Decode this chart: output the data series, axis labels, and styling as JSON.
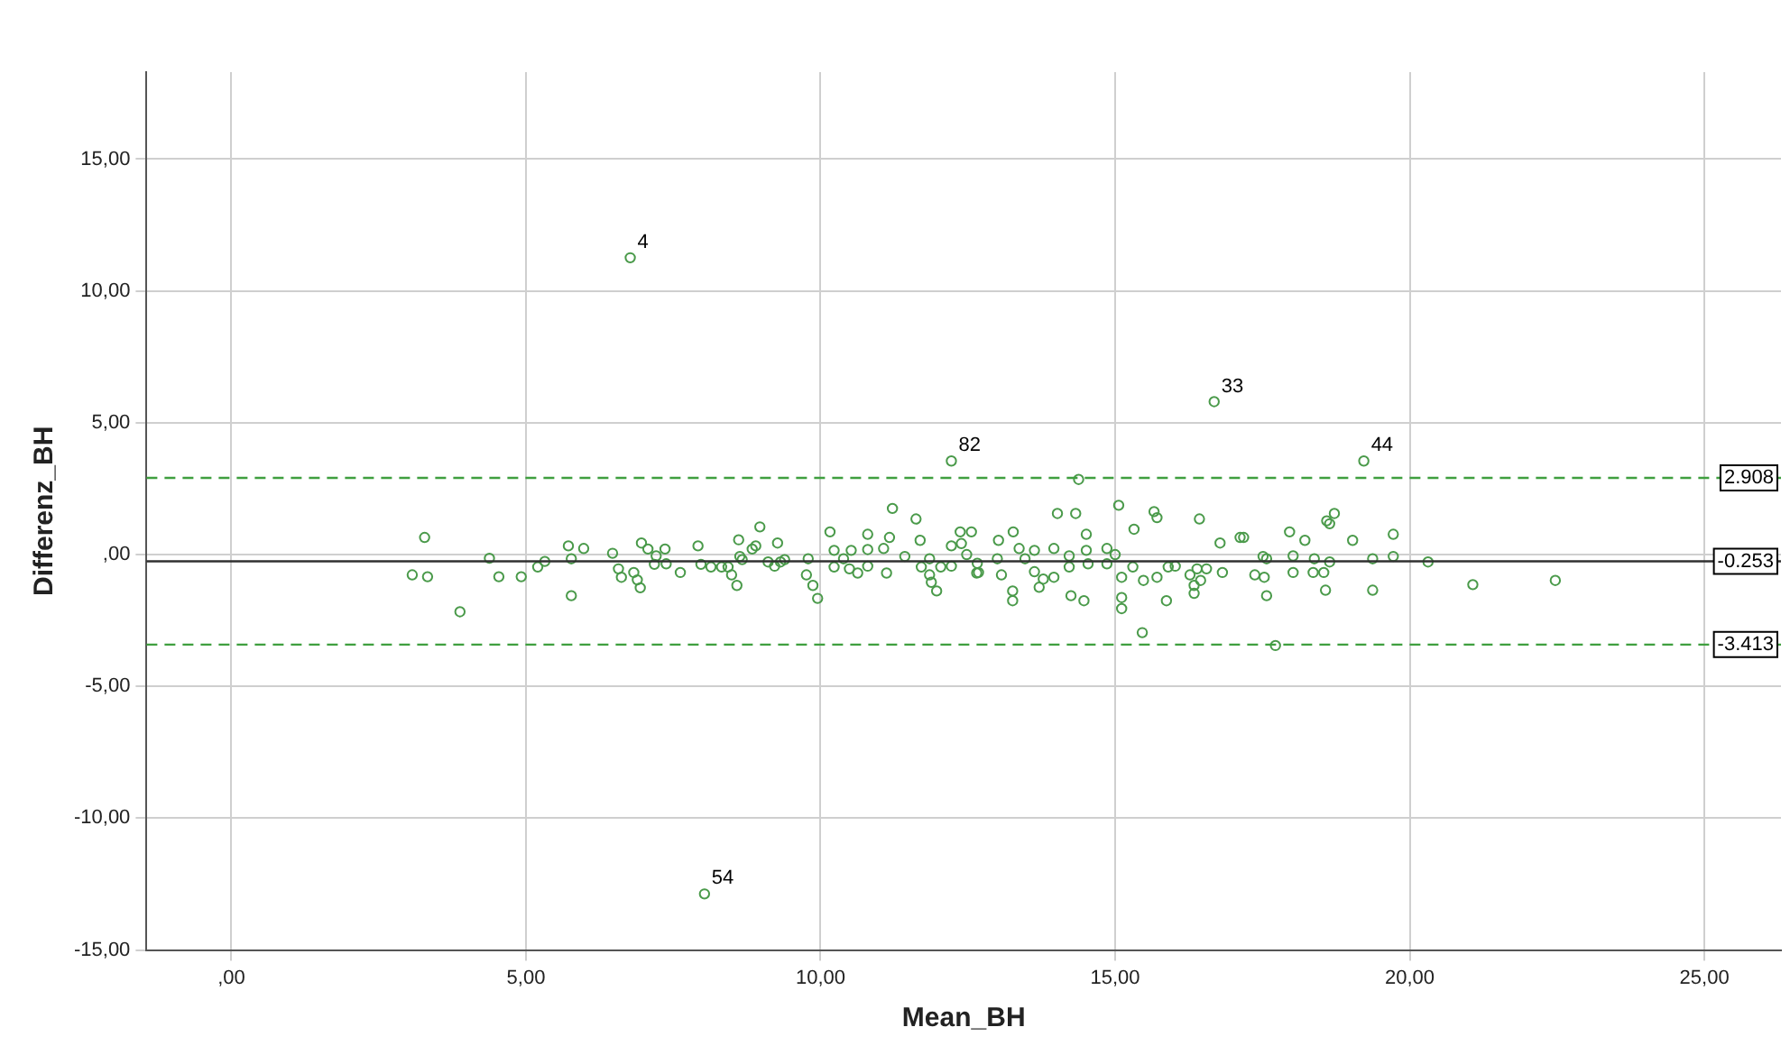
{
  "chart_data": {
    "type": "scatter",
    "xlabel": "Mean_BH",
    "ylabel": "Differenz_BH",
    "xlim": [
      -1.44,
      26.3
    ],
    "ylim": [
      -15,
      18.3
    ],
    "xticks": [
      {
        "value": 0,
        "label": ",00"
      },
      {
        "value": 5,
        "label": "5,00"
      },
      {
        "value": 10,
        "label": "10,00"
      },
      {
        "value": 15,
        "label": "15,00"
      },
      {
        "value": 20,
        "label": "20,00"
      },
      {
        "value": 25,
        "label": "25,00"
      }
    ],
    "yticks": [
      {
        "value": -15,
        "label": "-15,00"
      },
      {
        "value": -10,
        "label": "-10,00"
      },
      {
        "value": -5,
        "label": "-5,00"
      },
      {
        "value": 0,
        "label": ",00"
      },
      {
        "value": 5,
        "label": "5,00"
      },
      {
        "value": 10,
        "label": "10,00"
      },
      {
        "value": 15,
        "label": "15,00"
      }
    ],
    "grid": true,
    "marker": "circle",
    "legend": false,
    "series": [
      {
        "color": "#4a9a4a",
        "x": [
          3.28,
          3.07,
          3.33,
          3.88,
          4.38,
          4.54,
          4.92,
          5.2,
          5.32,
          5.72,
          5.77,
          5.77,
          5.98,
          6.47,
          6.57,
          6.62,
          6.83,
          6.89,
          6.94,
          6.96,
          7.07,
          7.18,
          7.21,
          7.36,
          7.38,
          7.62,
          7.92,
          7.97,
          8.14,
          8.32,
          8.43,
          8.49,
          8.58,
          8.61,
          8.63,
          8.67,
          8.84,
          8.9,
          8.97,
          9.11,
          9.22,
          9.27,
          9.32,
          9.39,
          9.76,
          9.79,
          9.87,
          9.95,
          12.22,
          14.38,
          11.22,
          11.62,
          15.06,
          15.66,
          15.71,
          16.43,
          14.02,
          14.33,
          15.32,
          16.78,
          17.12,
          10.16,
          10.8,
          11.17,
          11.69,
          12.37,
          12.56,
          13.27,
          14.51,
          12.22,
          12.39,
          13.02,
          13.37,
          13.63,
          13.96,
          14.51,
          14.86,
          11.07,
          10.8,
          10.52,
          10.23,
          10.39,
          11.43,
          11.85,
          12.48,
          13.0,
          13.47,
          14.22,
          15.0,
          10.23,
          10.49,
          10.63,
          10.8,
          11.12,
          11.71,
          12.04,
          12.22,
          12.66,
          12.65,
          13.07,
          13.63,
          13.78,
          13.96,
          14.22,
          14.54,
          14.86,
          15.11,
          15.3,
          15.48,
          15.71,
          15.9,
          16.02,
          16.27,
          16.39,
          16.55,
          16.82,
          11.85,
          11.88,
          11.97,
          12.68,
          13.26,
          13.26,
          13.71,
          14.25,
          14.47,
          15.11,
          15.11,
          15.87,
          15.46,
          16.34,
          16.34,
          16.45,
          19.22,
          18.72,
          18.59,
          18.64,
          17.18,
          17.96,
          18.22,
          19.03,
          19.72,
          17.51,
          17.57,
          18.02,
          18.38,
          18.64,
          19.37,
          19.72,
          20.31,
          17.37,
          17.53,
          18.02,
          18.36,
          18.54,
          17.57,
          18.57,
          19.37,
          21.07,
          22.47,
          17.72,
          6.77,
          16.68,
          8.03
        ],
        "values": [
          0.65,
          -0.77,
          -0.84,
          -2.17,
          -0.14,
          -0.84,
          -0.84,
          -0.47,
          -0.26,
          0.33,
          -0.16,
          -1.56,
          0.23,
          0.05,
          -0.54,
          -0.86,
          -0.68,
          -0.96,
          -1.26,
          0.44,
          0.21,
          -0.37,
          -0.05,
          0.21,
          -0.35,
          -0.68,
          0.33,
          -0.37,
          -0.47,
          -0.47,
          -0.47,
          -0.77,
          -1.17,
          0.56,
          -0.07,
          -0.19,
          0.21,
          0.33,
          1.05,
          -0.28,
          -0.44,
          0.44,
          -0.28,
          -0.19,
          -0.77,
          -0.16,
          -1.17,
          -1.66,
          3.55,
          2.85,
          1.75,
          1.35,
          1.87,
          1.63,
          1.4,
          1.35,
          1.56,
          1.56,
          0.96,
          0.44,
          0.65,
          0.86,
          0.77,
          0.65,
          0.54,
          0.86,
          0.86,
          0.86,
          0.77,
          0.33,
          0.42,
          0.54,
          0.23,
          0.16,
          0.23,
          0.16,
          0.23,
          0.23,
          0.19,
          0.16,
          0.16,
          -0.16,
          -0.07,
          -0.16,
          0.0,
          -0.16,
          -0.16,
          -0.05,
          0.0,
          -0.47,
          -0.54,
          -0.7,
          -0.44,
          -0.7,
          -0.47,
          -0.47,
          -0.44,
          -0.33,
          -0.7,
          -0.77,
          -0.65,
          -0.93,
          -0.86,
          -0.47,
          -0.35,
          -0.35,
          -0.86,
          -0.47,
          -0.98,
          -0.86,
          -0.47,
          -0.44,
          -0.77,
          -0.54,
          -0.54,
          -0.68,
          -0.77,
          -1.05,
          -1.38,
          -0.68,
          -1.38,
          -1.75,
          -1.24,
          -1.56,
          -1.75,
          -1.63,
          -2.05,
          -1.75,
          -2.96,
          -1.17,
          -1.47,
          -0.98,
          3.55,
          1.56,
          1.28,
          1.17,
          0.65,
          0.86,
          0.54,
          0.54,
          0.77,
          -0.07,
          -0.16,
          -0.05,
          -0.16,
          -0.28,
          -0.16,
          -0.07,
          -0.28,
          -0.77,
          -0.86,
          -0.68,
          -0.68,
          -0.68,
          -1.56,
          -1.35,
          -1.35,
          -1.14,
          -0.98,
          -3.45,
          11.26,
          5.8,
          -12.87
        ]
      }
    ],
    "ref_lines": [
      {
        "axis": "y",
        "value": 2.908,
        "label": "2.908",
        "color": "#3f9f3f",
        "line_style": "dashed"
      },
      {
        "axis": "y",
        "value": -0.253,
        "label": "-0.253",
        "color": "#303030",
        "line_style": "solid"
      },
      {
        "axis": "y",
        "value": -3.413,
        "label": "-3.413",
        "color": "#3f9f3f",
        "line_style": "dashed"
      }
    ],
    "annotations": [
      {
        "text": "4",
        "x": 6.77,
        "y": 11.26
      },
      {
        "text": "33",
        "x": 16.68,
        "y": 5.8
      },
      {
        "text": "82",
        "x": 12.22,
        "y": 3.55
      },
      {
        "text": "44",
        "x": 19.22,
        "y": 3.55
      },
      {
        "text": "54",
        "x": 8.03,
        "y": -12.87
      }
    ]
  }
}
